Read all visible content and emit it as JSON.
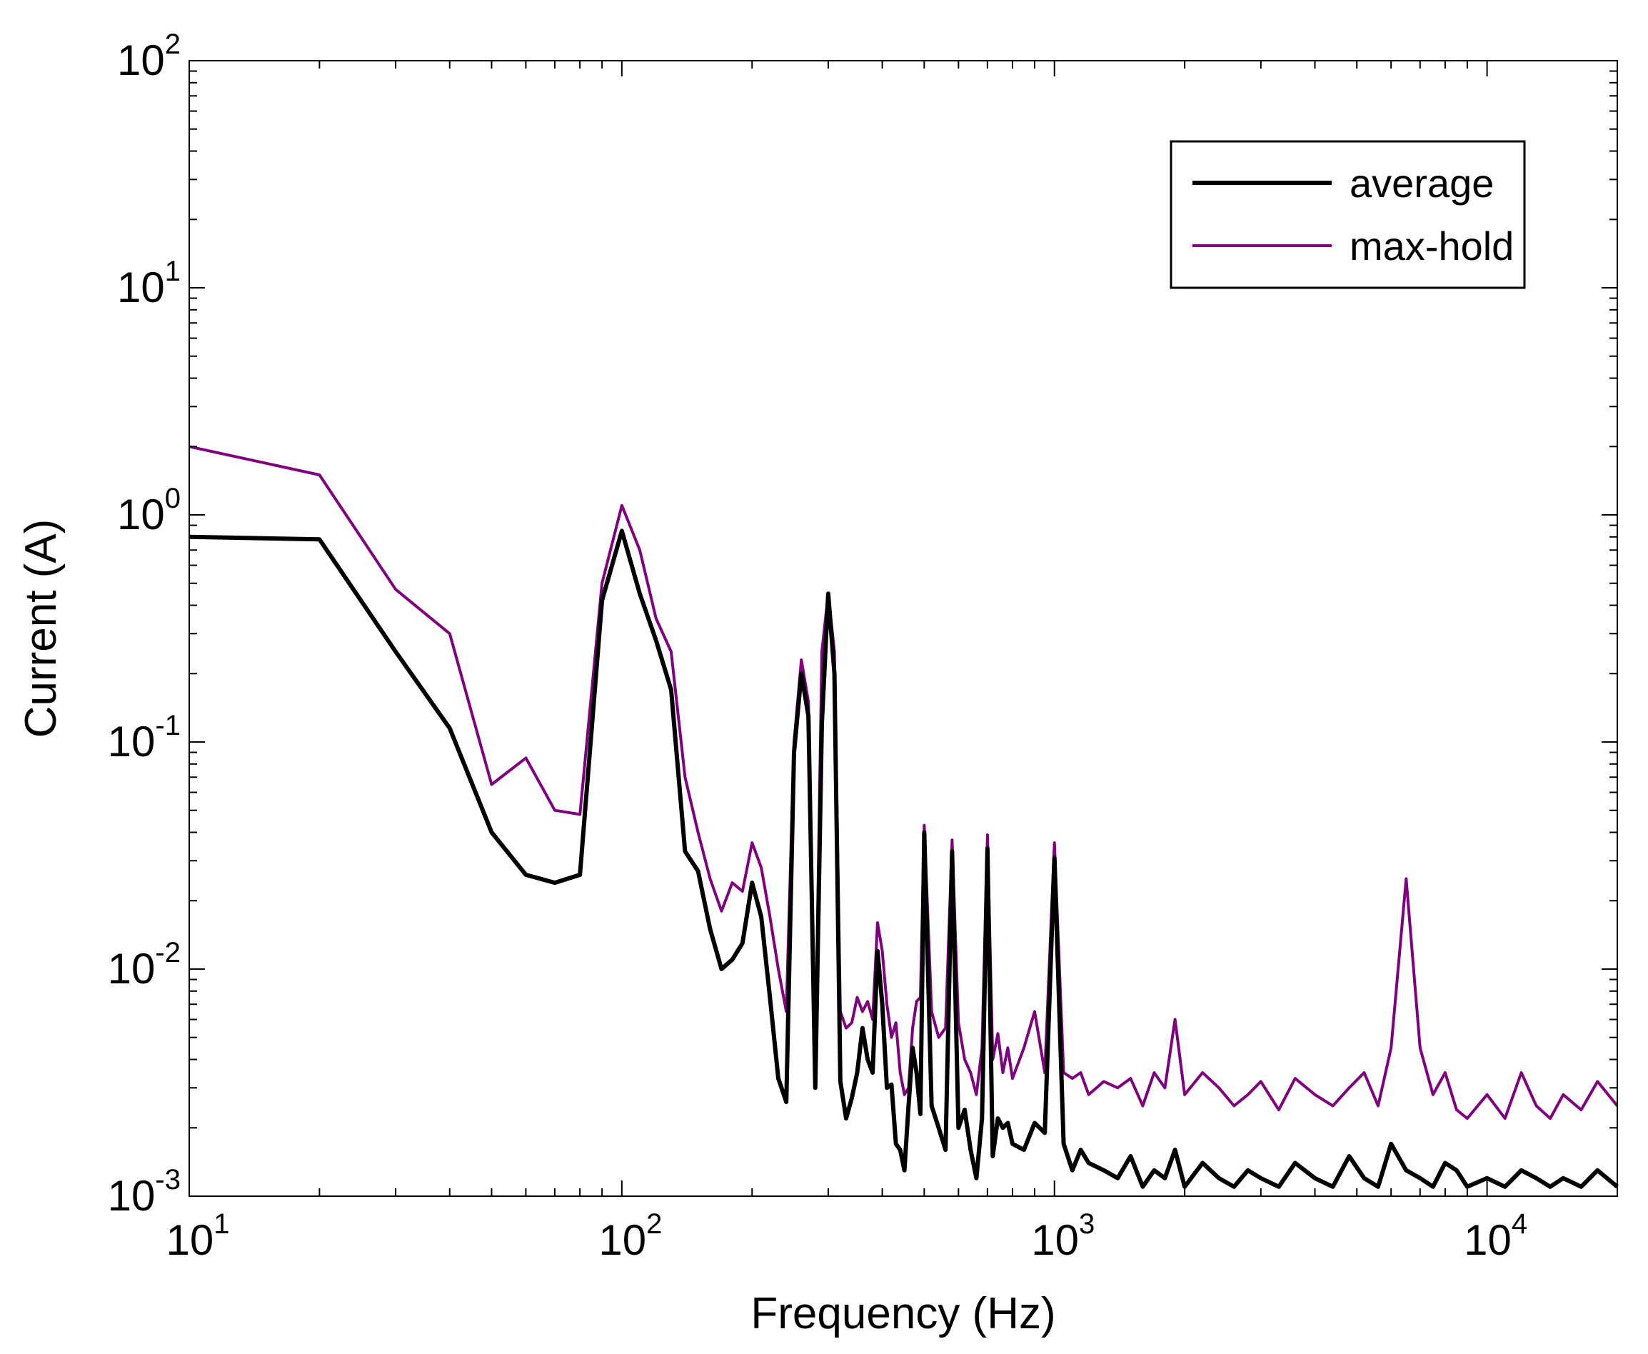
{
  "chart_data": {
    "type": "line",
    "title": "",
    "xlabel": "Frequency (Hz)",
    "ylabel": "Current (A)",
    "xscale": "log",
    "yscale": "log",
    "xlim": [
      10,
      20000
    ],
    "ylim": [
      0.001,
      100
    ],
    "grid": false,
    "legend_position": "top-right",
    "x_ticks": [
      {
        "base": "10",
        "exp": "1",
        "value": 10
      },
      {
        "base": "10",
        "exp": "2",
        "value": 100
      },
      {
        "base": "10",
        "exp": "3",
        "value": 1000
      },
      {
        "base": "10",
        "exp": "4",
        "value": 10000
      }
    ],
    "y_ticks": [
      {
        "base": "10",
        "exp": "-3",
        "value": 0.001
      },
      {
        "base": "10",
        "exp": "-2",
        "value": 0.01
      },
      {
        "base": "10",
        "exp": "-1",
        "value": 0.1
      },
      {
        "base": "10",
        "exp": "0",
        "value": 1
      },
      {
        "base": "10",
        "exp": "1",
        "value": 10
      },
      {
        "base": "10",
        "exp": "2",
        "value": 100
      }
    ],
    "series": [
      {
        "name": "average",
        "color": "#000000",
        "x": [
          10,
          20,
          30,
          40,
          50,
          60,
          70,
          80,
          90,
          100,
          110,
          120,
          130,
          140,
          150,
          160,
          170,
          180,
          190,
          200,
          210,
          220,
          230,
          240,
          250,
          260,
          270,
          280,
          290,
          300,
          310,
          320,
          330,
          340,
          350,
          360,
          370,
          380,
          390,
          400,
          410,
          420,
          430,
          440,
          450,
          460,
          470,
          480,
          490,
          500,
          520,
          540,
          560,
          580,
          600,
          620,
          640,
          660,
          680,
          700,
          720,
          740,
          760,
          780,
          800,
          850,
          900,
          950,
          1000,
          1050,
          1100,
          1150,
          1200,
          1300,
          1400,
          1500,
          1600,
          1700,
          1800,
          1900,
          2000,
          2200,
          2400,
          2600,
          2800,
          3000,
          3300,
          3600,
          4000,
          4400,
          4800,
          5200,
          5600,
          6000,
          6500,
          7000,
          7500,
          8000,
          8500,
          9000,
          10000,
          11000,
          12000,
          13000,
          14000,
          15000,
          16500,
          18000,
          20000
        ],
        "values": [
          0.8,
          0.78,
          0.25,
          0.115,
          0.04,
          0.026,
          0.024,
          0.026,
          0.42,
          0.85,
          0.45,
          0.28,
          0.17,
          0.033,
          0.027,
          0.015,
          0.01,
          0.011,
          0.013,
          0.024,
          0.017,
          0.0075,
          0.0033,
          0.0026,
          0.09,
          0.2,
          0.13,
          0.003,
          0.12,
          0.45,
          0.2,
          0.0032,
          0.0022,
          0.0027,
          0.0035,
          0.0055,
          0.004,
          0.0035,
          0.012,
          0.007,
          0.003,
          0.0031,
          0.0017,
          0.0016,
          0.0013,
          0.0025,
          0.0045,
          0.0035,
          0.0023,
          0.04,
          0.0025,
          0.002,
          0.0016,
          0.033,
          0.002,
          0.0024,
          0.0016,
          0.0012,
          0.0022,
          0.034,
          0.0015,
          0.0022,
          0.002,
          0.0021,
          0.0017,
          0.0016,
          0.0021,
          0.0019,
          0.031,
          0.0017,
          0.0013,
          0.0016,
          0.0014,
          0.0013,
          0.0012,
          0.0015,
          0.0011,
          0.0013,
          0.0012,
          0.0016,
          0.0011,
          0.0014,
          0.0012,
          0.0011,
          0.0013,
          0.0012,
          0.0011,
          0.0014,
          0.0012,
          0.0011,
          0.0015,
          0.0012,
          0.0011,
          0.0017,
          0.0013,
          0.0012,
          0.0011,
          0.0014,
          0.0013,
          0.0011,
          0.0012,
          0.0011,
          0.0013,
          0.0012,
          0.0011,
          0.0012,
          0.0011,
          0.0013,
          0.0011
        ]
      },
      {
        "name": "max-hold",
        "color": "#800080",
        "x": [
          10,
          20,
          30,
          40,
          50,
          60,
          70,
          80,
          90,
          100,
          110,
          120,
          130,
          140,
          150,
          160,
          170,
          180,
          190,
          200,
          210,
          220,
          230,
          240,
          250,
          260,
          270,
          280,
          290,
          300,
          310,
          320,
          330,
          340,
          350,
          360,
          370,
          380,
          390,
          400,
          410,
          420,
          430,
          440,
          450,
          460,
          470,
          480,
          490,
          500,
          520,
          540,
          560,
          580,
          600,
          620,
          640,
          660,
          680,
          700,
          720,
          740,
          760,
          780,
          800,
          850,
          900,
          950,
          1000,
          1050,
          1100,
          1150,
          1200,
          1300,
          1400,
          1500,
          1600,
          1700,
          1800,
          1900,
          2000,
          2200,
          2400,
          2600,
          2800,
          3000,
          3300,
          3600,
          4000,
          4400,
          4800,
          5200,
          5600,
          6000,
          6500,
          7000,
          7500,
          8000,
          8500,
          9000,
          10000,
          11000,
          12000,
          13000,
          14000,
          15000,
          16500,
          18000,
          20000
        ],
        "values": [
          2.0,
          1.5,
          0.47,
          0.3,
          0.065,
          0.085,
          0.05,
          0.048,
          0.5,
          1.1,
          0.7,
          0.35,
          0.25,
          0.07,
          0.04,
          0.025,
          0.018,
          0.024,
          0.022,
          0.036,
          0.028,
          0.017,
          0.01,
          0.0065,
          0.1,
          0.23,
          0.15,
          0.004,
          0.25,
          0.45,
          0.25,
          0.0065,
          0.0055,
          0.0058,
          0.0075,
          0.0065,
          0.0072,
          0.006,
          0.016,
          0.012,
          0.007,
          0.005,
          0.0058,
          0.0035,
          0.0028,
          0.003,
          0.0055,
          0.0072,
          0.0075,
          0.043,
          0.0065,
          0.005,
          0.0055,
          0.037,
          0.0058,
          0.004,
          0.0035,
          0.0028,
          0.0045,
          0.039,
          0.004,
          0.0052,
          0.0035,
          0.0045,
          0.0033,
          0.0045,
          0.0065,
          0.0035,
          0.036,
          0.0035,
          0.0033,
          0.0035,
          0.0028,
          0.0032,
          0.003,
          0.0033,
          0.0025,
          0.0035,
          0.003,
          0.006,
          0.0028,
          0.0035,
          0.003,
          0.0025,
          0.0028,
          0.0032,
          0.0024,
          0.0033,
          0.0028,
          0.0025,
          0.003,
          0.0035,
          0.0025,
          0.0045,
          0.025,
          0.0045,
          0.0028,
          0.0035,
          0.0024,
          0.0022,
          0.0028,
          0.0022,
          0.0035,
          0.0025,
          0.0022,
          0.0028,
          0.0024,
          0.0032,
          0.0025
        ]
      }
    ]
  }
}
